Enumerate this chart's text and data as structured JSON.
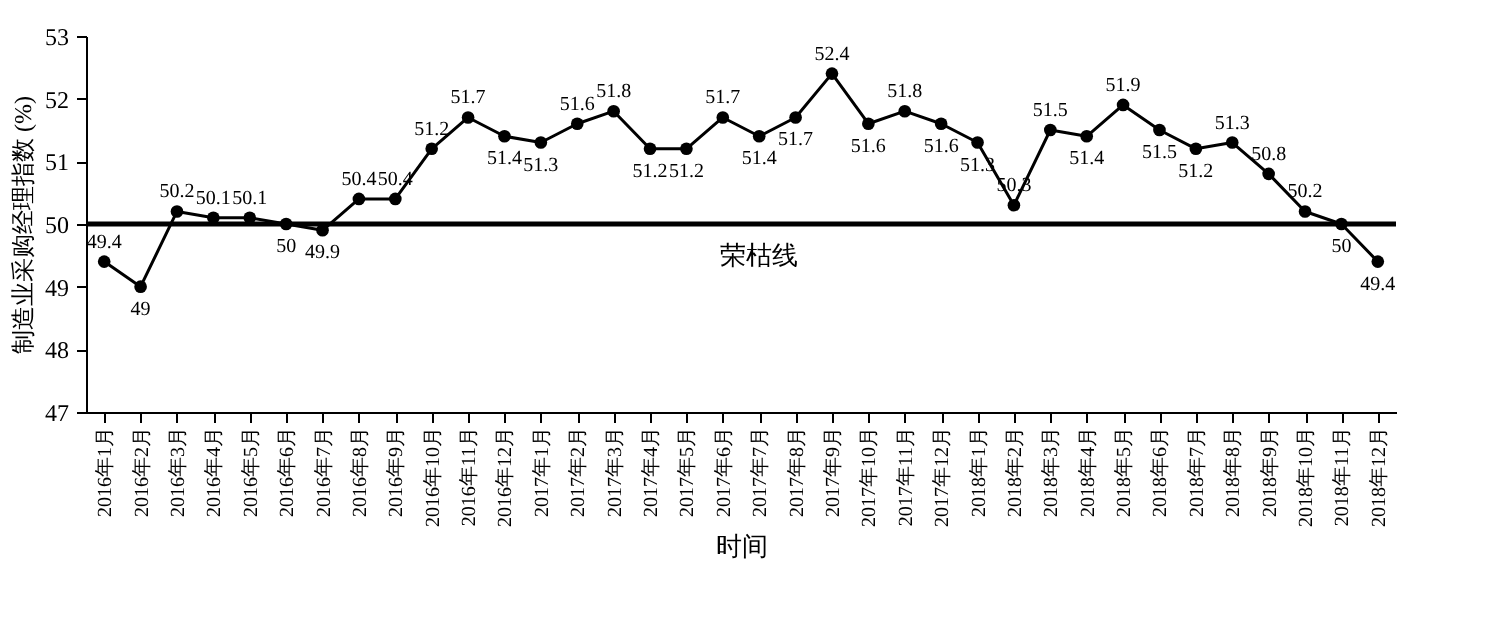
{
  "chart_data": {
    "type": "line",
    "xlabel": "时间",
    "ylabel": "制造业采购经理指数 (%)",
    "categories": [
      "2016年1月",
      "2016年2月",
      "2016年3月",
      "2016年4月",
      "2016年5月",
      "2016年6月",
      "2016年7月",
      "2016年8月",
      "2016年9月",
      "2016年10月",
      "2016年11月",
      "2016年12月",
      "2017年1月",
      "2017年2月",
      "2017年3月",
      "2017年4月",
      "2017年5月",
      "2017年6月",
      "2017年7月",
      "2017年8月",
      "2017年9月",
      "2017年10月",
      "2017年11月",
      "2017年12月",
      "2018年1月",
      "2018年2月",
      "2018年3月",
      "2018年4月",
      "2018年5月",
      "2018年6月",
      "2018年7月",
      "2018年8月",
      "2018年9月",
      "2018年10月",
      "2018年11月",
      "2018年12月"
    ],
    "series": [
      {
        "color": "#000000",
        "values": [
          49.4,
          49,
          50.2,
          50.1,
          50.1,
          50,
          49.9,
          50.4,
          50.4,
          51.2,
          51.7,
          51.4,
          51.3,
          51.6,
          51.8,
          51.2,
          51.2,
          51.7,
          51.4,
          51.7,
          52.4,
          51.6,
          51.8,
          51.6,
          51.3,
          50.3,
          51.5,
          51.4,
          51.9,
          51.5,
          51.2,
          51.3,
          50.8,
          50.2,
          50,
          49.4
        ]
      }
    ],
    "ylim": [
      47,
      53
    ],
    "yticks": [
      47,
      48,
      49,
      50,
      51,
      52,
      53
    ],
    "ref_lines": [
      {
        "axis": "y",
        "value": 50,
        "label": "荣枯线",
        "color": "#000000"
      }
    ],
    "data_labels": true,
    "marker": "circle",
    "line_style": "solid",
    "grid": false,
    "legend": false
  }
}
